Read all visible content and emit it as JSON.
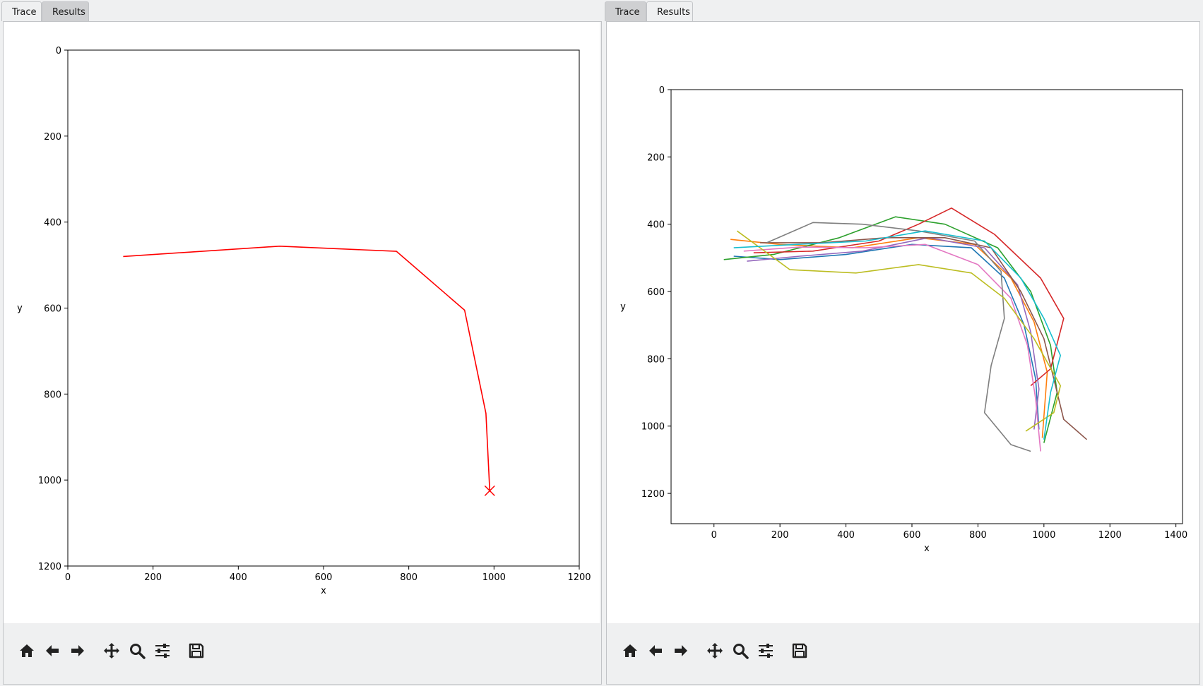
{
  "panes": [
    {
      "tabs": [
        {
          "label": "Trace",
          "active": true
        },
        {
          "label": "Results",
          "active": false
        }
      ],
      "toolbar": [
        "home-icon",
        "back-icon",
        "forward-icon",
        "pan-icon",
        "zoom-icon",
        "configure-icon",
        "save-icon"
      ]
    },
    {
      "tabs": [
        {
          "label": "Trace",
          "active": false
        },
        {
          "label": "Results",
          "active": true
        }
      ],
      "toolbar": [
        "home-icon",
        "back-icon",
        "forward-icon",
        "pan-icon",
        "zoom-icon",
        "configure-icon",
        "save-icon"
      ]
    }
  ],
  "chart_data": [
    {
      "type": "line",
      "xlabel": "x",
      "ylabel": "y",
      "xlim": [
        0,
        1200
      ],
      "ylim": [
        1200,
        0
      ],
      "y_inverted": true,
      "xticks": [
        0,
        200,
        400,
        600,
        800,
        1000,
        1200
      ],
      "yticks": [
        0,
        200,
        400,
        600,
        800,
        1000,
        1200
      ],
      "grid": false,
      "series": [
        {
          "color": "#ff0000",
          "points": [
            [
              130,
              480
            ],
            [
              497,
              456
            ],
            [
              771,
              468
            ],
            [
              931,
              605
            ],
            [
              981,
              845
            ],
            [
              990,
              1025
            ]
          ],
          "end_marker": {
            "x": 990,
            "y": 1025,
            "symbol": "x"
          }
        }
      ]
    },
    {
      "type": "line",
      "xlabel": "x",
      "ylabel": "y",
      "xlim": [
        -130,
        1420
      ],
      "ylim": [
        1290,
        0
      ],
      "y_inverted": true,
      "xticks": [
        0,
        200,
        400,
        600,
        800,
        1000,
        1200,
        1400
      ],
      "yticks": [
        0,
        200,
        400,
        600,
        800,
        1000,
        1200
      ],
      "grid": false,
      "series": [
        {
          "color": "#1f77b4",
          "points": [
            [
              60,
              495
            ],
            [
              200,
              505
            ],
            [
              400,
              490
            ],
            [
              600,
              460
            ],
            [
              780,
              470
            ],
            [
              880,
              560
            ],
            [
              940,
              700
            ],
            [
              975,
              860
            ],
            [
              985,
              1010
            ]
          ]
        },
        {
          "color": "#ff7f0e",
          "points": [
            [
              50,
              445
            ],
            [
              200,
              460
            ],
            [
              420,
              470
            ],
            [
              620,
              440
            ],
            [
              790,
              460
            ],
            [
              900,
              560
            ],
            [
              970,
              690
            ],
            [
              1010,
              840
            ],
            [
              995,
              1035
            ]
          ]
        },
        {
          "color": "#2ca02c",
          "points": [
            [
              30,
              505
            ],
            [
              180,
              490
            ],
            [
              380,
              440
            ],
            [
              550,
              378
            ],
            [
              700,
              400
            ],
            [
              860,
              470
            ],
            [
              960,
              600
            ],
            [
              1020,
              760
            ],
            [
              1040,
              900
            ],
            [
              1000,
              1050
            ]
          ]
        },
        {
          "color": "#d62728",
          "points": [
            [
              120,
              485
            ],
            [
              300,
              480
            ],
            [
              500,
              450
            ],
            [
              620,
              400
            ],
            [
              720,
              352
            ],
            [
              850,
              430
            ],
            [
              990,
              560
            ],
            [
              1060,
              680
            ],
            [
              1020,
              830
            ],
            [
              960,
              880
            ]
          ]
        },
        {
          "color": "#9467bd",
          "points": [
            [
              100,
              510
            ],
            [
              260,
              495
            ],
            [
              450,
              480
            ],
            [
              650,
              440
            ],
            [
              820,
              470
            ],
            [
              920,
              580
            ],
            [
              960,
              720
            ],
            [
              985,
              890
            ],
            [
              970,
              1010
            ]
          ]
        },
        {
          "color": "#8c564b",
          "points": [
            [
              140,
              455
            ],
            [
              330,
              455
            ],
            [
              520,
              440
            ],
            [
              700,
              440
            ],
            [
              840,
              470
            ],
            [
              930,
              600
            ],
            [
              1000,
              740
            ],
            [
              1040,
              900
            ],
            [
              1060,
              980
            ],
            [
              1130,
              1040
            ]
          ]
        },
        {
          "color": "#e377c2",
          "points": [
            [
              90,
              480
            ],
            [
              260,
              468
            ],
            [
              460,
              470
            ],
            [
              640,
              460
            ],
            [
              800,
              520
            ],
            [
              900,
              620
            ],
            [
              950,
              760
            ],
            [
              975,
              920
            ],
            [
              990,
              1075
            ]
          ]
        },
        {
          "color": "#7f7f7f",
          "points": [
            [
              160,
              455
            ],
            [
              300,
              395
            ],
            [
              450,
              400
            ],
            [
              620,
              420
            ],
            [
              790,
              450
            ],
            [
              870,
              540
            ],
            [
              880,
              680
            ],
            [
              840,
              820
            ],
            [
              820,
              960
            ],
            [
              900,
              1055
            ],
            [
              960,
              1075
            ]
          ]
        },
        {
          "color": "#bcbd22",
          "points": [
            [
              70,
              420
            ],
            [
              230,
              535
            ],
            [
              430,
              545
            ],
            [
              620,
              520
            ],
            [
              780,
              545
            ],
            [
              880,
              620
            ],
            [
              970,
              740
            ],
            [
              1050,
              880
            ],
            [
              1030,
              960
            ],
            [
              945,
              1015
            ]
          ]
        },
        {
          "color": "#17becf",
          "points": [
            [
              60,
              470
            ],
            [
              250,
              460
            ],
            [
              460,
              450
            ],
            [
              640,
              420
            ],
            [
              820,
              450
            ],
            [
              930,
              560
            ],
            [
              1000,
              680
            ],
            [
              1050,
              790
            ],
            [
              1020,
              900
            ],
            [
              1000,
              1040
            ]
          ]
        }
      ]
    }
  ]
}
